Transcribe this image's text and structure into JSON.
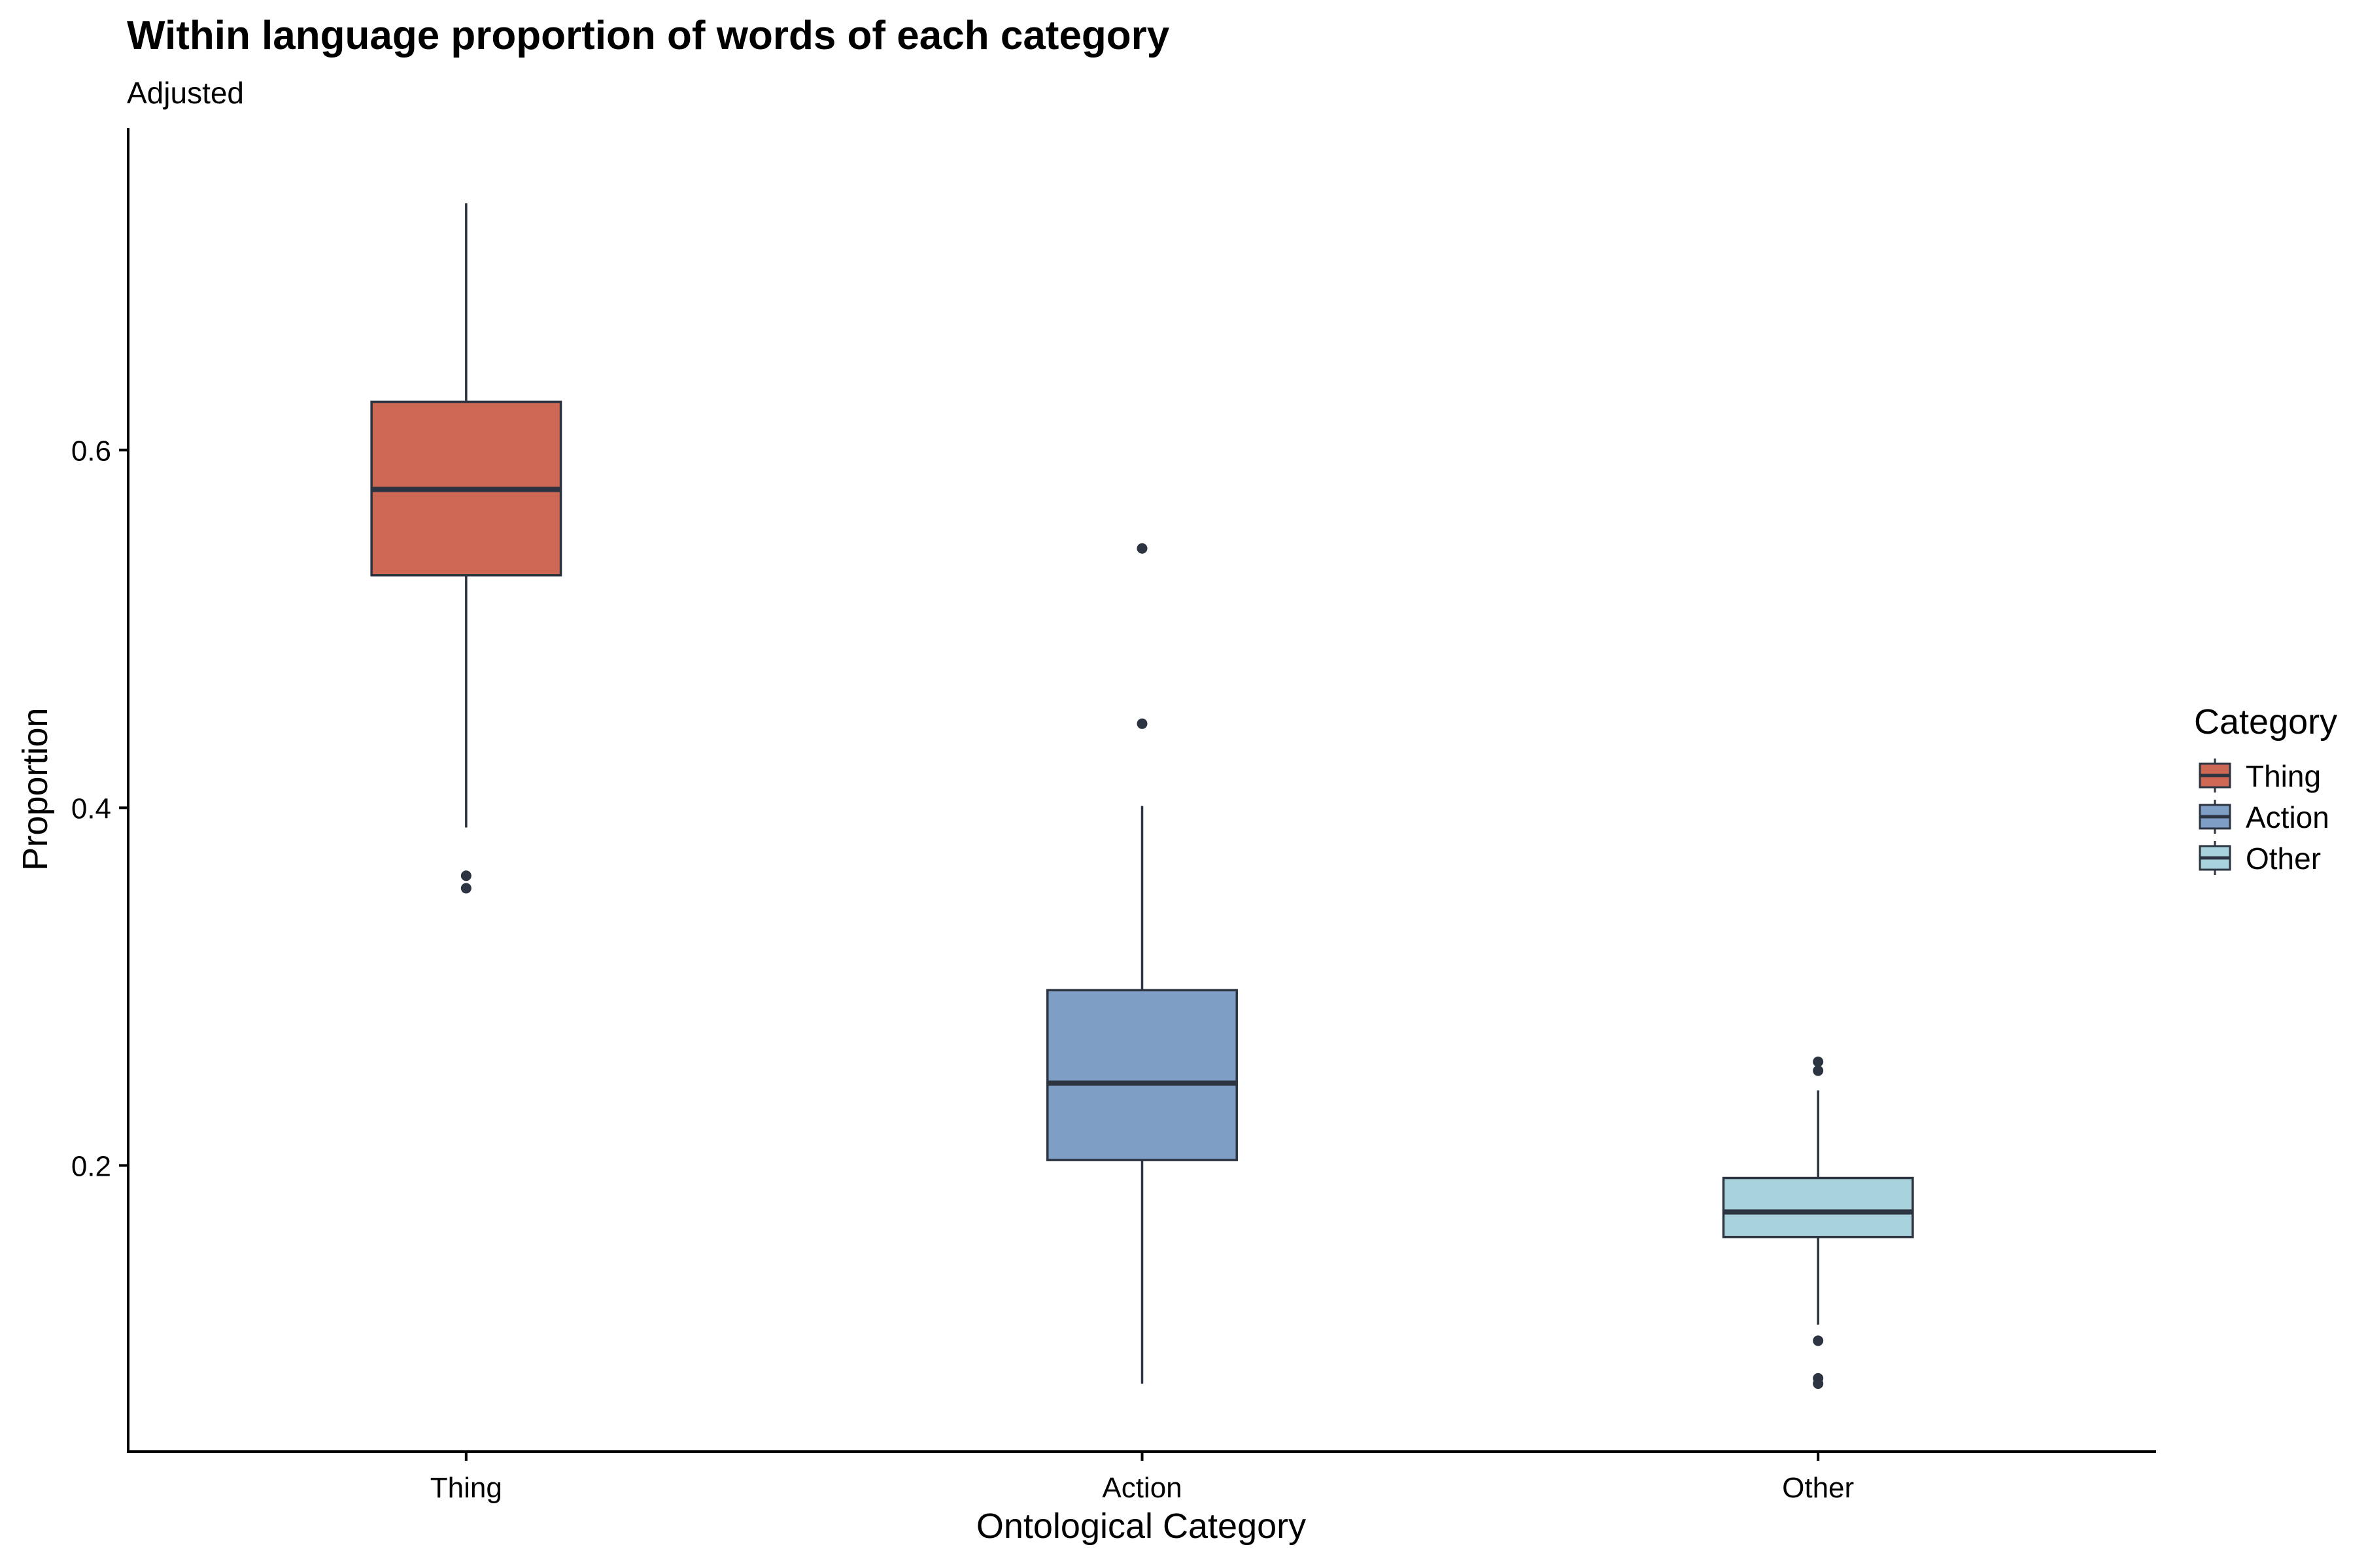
{
  "chart_data": {
    "type": "boxplot",
    "title": "Within language proportion of words of each category",
    "subtitle": "Adjusted",
    "xlabel": "Ontological Category",
    "ylabel": "Proportion",
    "ylim": [
      0.04,
      0.78
    ],
    "y_ticks": [
      0.2,
      0.4,
      0.6
    ],
    "y_tick_labels": [
      "0.2",
      "0.4",
      "0.6"
    ],
    "grid": false,
    "legend": {
      "title": "Category",
      "position": "right",
      "entries": [
        "Thing",
        "Action",
        "Other"
      ]
    },
    "categories": [
      "Thing",
      "Action",
      "Other"
    ],
    "series": [
      {
        "name": "Thing",
        "color": "#CD6855",
        "q1": 0.53,
        "median": 0.578,
        "q3": 0.627,
        "whisker_low": 0.389,
        "whisker_high": 0.738,
        "outliers": [
          0.362,
          0.355
        ]
      },
      {
        "name": "Action",
        "color": "#7F9EC5",
        "q1": 0.203,
        "median": 0.246,
        "q3": 0.298,
        "whisker_low": 0.078,
        "whisker_high": 0.401,
        "outliers": [
          0.545,
          0.447
        ]
      },
      {
        "name": "Other",
        "color": "#A9D3DC",
        "q1": 0.16,
        "median": 0.174,
        "q3": 0.193,
        "whisker_low": 0.111,
        "whisker_high": 0.242,
        "outliers": [
          0.258,
          0.253,
          0.102,
          0.081,
          0.078
        ]
      }
    ],
    "stroke_color": "#2B3440"
  }
}
